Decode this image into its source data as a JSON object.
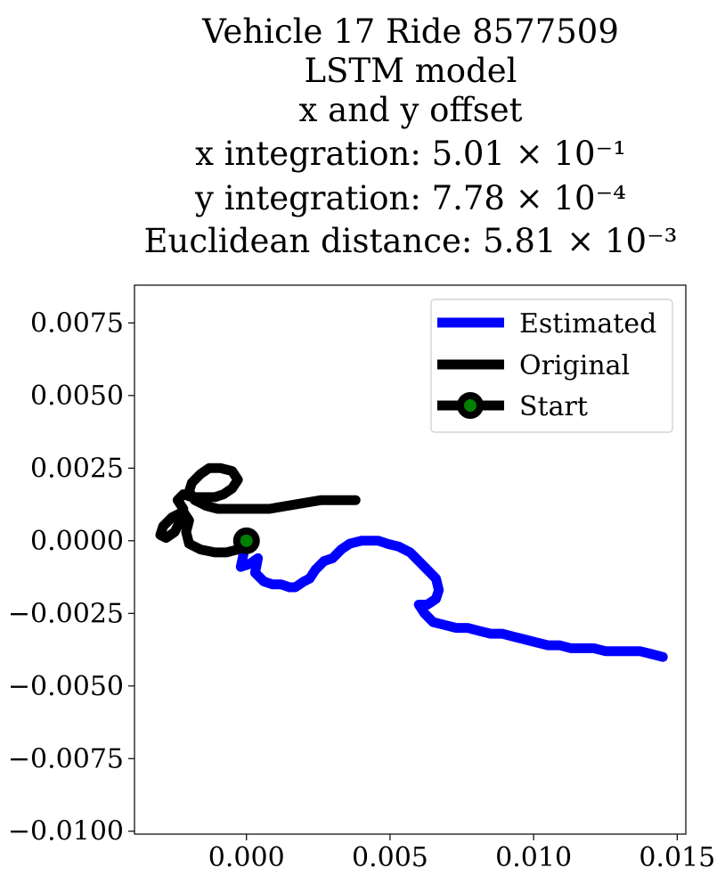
{
  "chart_data": {
    "type": "line",
    "title_lines": [
      "Vehicle 17 Ride 8577509",
      "LSTM model",
      "x and y offset",
      "x integration: 5.01 × 10⁻¹",
      "y integration: 7.78 × 10⁻⁴",
      "Euclidean distance: 5.81 × 10⁻³"
    ],
    "xlabel": "",
    "ylabel": "",
    "xlim": [
      -0.0039,
      0.0153
    ],
    "ylim": [
      -0.0101,
      0.0088
    ],
    "xticks": [
      0.0,
      0.005,
      0.01,
      0.015
    ],
    "xtick_labels": [
      "0.000",
      "0.005",
      "0.010",
      "0.015"
    ],
    "yticks": [
      0.0075,
      0.005,
      0.0025,
      0.0,
      -0.0025,
      -0.005,
      -0.0075,
      -0.01
    ],
    "ytick_labels": [
      "0.0075",
      "0.0050",
      "0.0025",
      "0.0000",
      "−0.0025",
      "−0.0050",
      "−0.0075",
      "−0.0100"
    ],
    "grid": false,
    "legend_position": "top-right",
    "series": [
      {
        "name": "Estimated",
        "color": "#0000ff",
        "points": [
          [
            0.0,
            0.0
          ],
          [
            -0.0002,
            -0.0009
          ],
          [
            0.0001,
            -0.0008
          ],
          [
            0.0004,
            -0.0006
          ],
          [
            0.0003,
            -0.0011
          ],
          [
            0.0006,
            -0.0014
          ],
          [
            0.0009,
            -0.0015
          ],
          [
            0.0012,
            -0.0015
          ],
          [
            0.0015,
            -0.0016
          ],
          [
            0.0017,
            -0.0016
          ],
          [
            0.002,
            -0.0014
          ],
          [
            0.0022,
            -0.0013
          ],
          [
            0.0024,
            -0.001
          ],
          [
            0.0027,
            -0.0007
          ],
          [
            0.003,
            -0.0006
          ],
          [
            0.0033,
            -0.0003
          ],
          [
            0.0036,
            -0.0001
          ],
          [
            0.004,
            0.0
          ],
          [
            0.0043,
            0.0
          ],
          [
            0.0046,
            0.0
          ],
          [
            0.0049,
            -0.0001
          ],
          [
            0.0053,
            -0.0002
          ],
          [
            0.0057,
            -0.0004
          ],
          [
            0.006,
            -0.0007
          ],
          [
            0.0063,
            -0.001
          ],
          [
            0.0066,
            -0.0013
          ],
          [
            0.0067,
            -0.0017
          ],
          [
            0.0066,
            -0.002
          ],
          [
            0.0063,
            -0.0022
          ],
          [
            0.006,
            -0.0022
          ],
          [
            0.0062,
            -0.0025
          ],
          [
            0.0065,
            -0.0028
          ],
          [
            0.0069,
            -0.0029
          ],
          [
            0.0073,
            -0.003
          ],
          [
            0.0077,
            -0.003
          ],
          [
            0.0081,
            -0.0031
          ],
          [
            0.0085,
            -0.0032
          ],
          [
            0.0089,
            -0.0032
          ],
          [
            0.0093,
            -0.0033
          ],
          [
            0.0097,
            -0.0034
          ],
          [
            0.0101,
            -0.0035
          ],
          [
            0.0105,
            -0.0036
          ],
          [
            0.0109,
            -0.0036
          ],
          [
            0.0113,
            -0.0037
          ],
          [
            0.0117,
            -0.0037
          ],
          [
            0.0121,
            -0.0037
          ],
          [
            0.0125,
            -0.0038
          ],
          [
            0.0129,
            -0.0038
          ],
          [
            0.0133,
            -0.0038
          ],
          [
            0.0137,
            -0.0038
          ],
          [
            0.0141,
            -0.0039
          ],
          [
            0.0145,
            -0.004
          ]
        ]
      },
      {
        "name": "Original",
        "color": "#000000",
        "points": [
          [
            0.0,
            0.0
          ],
          [
            -0.0003,
            -0.0003
          ],
          [
            -0.0007,
            -0.0004
          ],
          [
            -0.0011,
            -0.0004
          ],
          [
            -0.0016,
            -0.0003
          ],
          [
            -0.002,
            -0.0001
          ],
          [
            -0.0021,
            0.0003
          ],
          [
            -0.002,
            0.0007
          ],
          [
            -0.0022,
            0.001
          ],
          [
            -0.0026,
            0.0008
          ],
          [
            -0.0029,
            0.0005
          ],
          [
            -0.003,
            0.0002
          ],
          [
            -0.0028,
            0.0001
          ],
          [
            -0.0025,
            0.0003
          ],
          [
            -0.0023,
            0.0007
          ],
          [
            -0.0022,
            0.0011
          ],
          [
            -0.0024,
            0.0014
          ],
          [
            -0.0022,
            0.0016
          ],
          [
            -0.0019,
            0.0015
          ],
          [
            -0.0015,
            0.0015
          ],
          [
            -0.0011,
            0.0015
          ],
          [
            -0.0008,
            0.0016
          ],
          [
            -0.0005,
            0.0018
          ],
          [
            -0.0003,
            0.0021
          ],
          [
            -0.0005,
            0.0024
          ],
          [
            -0.0009,
            0.0025
          ],
          [
            -0.0013,
            0.0025
          ],
          [
            -0.0016,
            0.0023
          ],
          [
            -0.0019,
            0.002
          ],
          [
            -0.002,
            0.0017
          ],
          [
            -0.0018,
            0.0014
          ],
          [
            -0.0014,
            0.0012
          ],
          [
            -0.001,
            0.0011
          ],
          [
            -0.0004,
            0.0011
          ],
          [
            0.0002,
            0.0011
          ],
          [
            0.0008,
            0.0011
          ],
          [
            0.0014,
            0.0012
          ],
          [
            0.002,
            0.0013
          ],
          [
            0.0026,
            0.0014
          ],
          [
            0.0032,
            0.0014
          ],
          [
            0.0038,
            0.0014
          ]
        ]
      }
    ],
    "start_marker": {
      "name": "Start",
      "point": [
        0.0,
        0.0
      ],
      "edge_color": "#000000",
      "face_color": "#008000"
    }
  }
}
